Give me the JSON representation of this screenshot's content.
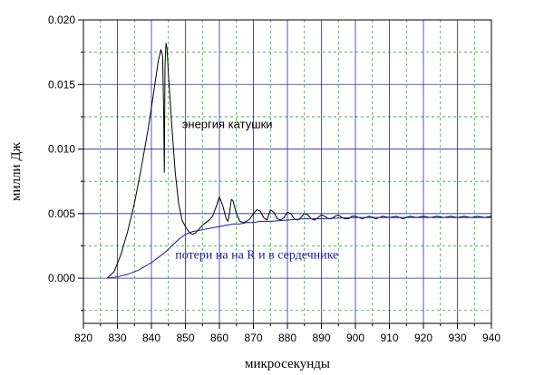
{
  "chart_data": {
    "type": "line",
    "xlabel": "микросекунды",
    "ylabel": "милли Дж",
    "xlim": [
      820,
      940
    ],
    "ylim": [
      -0.0035,
      0.02
    ],
    "xticks": [
      820,
      830,
      840,
      850,
      860,
      870,
      880,
      890,
      900,
      910,
      920,
      930,
      940
    ],
    "xtick_labels": [
      "820",
      "830",
      "840",
      "850",
      "860",
      "870",
      "880",
      "890",
      "900",
      "910",
      "920",
      "930",
      "940"
    ],
    "yticks": [
      0.0,
      0.005,
      0.01,
      0.015,
      0.02
    ],
    "ytick_labels": [
      "0.000",
      "0.005",
      "0.010",
      "0.015",
      "0.020"
    ],
    "grid": true,
    "colors": {
      "background": "#ffffff",
      "major_grid": "#2a2a9a",
      "minor_grid": "#22aa22",
      "loss_series": "#1a1aa8",
      "energy_series": "#000000"
    },
    "annotations": [
      {
        "text": "энергия катушки",
        "x": 849,
        "y": 0.0116,
        "color": "#000000"
      },
      {
        "text": "потери на на R и в сердечнике",
        "x": 847,
        "y": 0.0015,
        "color": "#1a1aa8"
      }
    ],
    "series": [
      {
        "name": "",
        "color": "#000000",
        "x": [
          827,
          829,
          831,
          833,
          835,
          837,
          839,
          840,
          841,
          842,
          842.8,
          843.3,
          843.6,
          843.8,
          844.0,
          844.3,
          844.6,
          845.0,
          846,
          847,
          848,
          849,
          850,
          851,
          852,
          853,
          854,
          855,
          856,
          857,
          858,
          859,
          860,
          861,
          862,
          862.5,
          863,
          863.5,
          864,
          865,
          866,
          867,
          868,
          869,
          870,
          871,
          872,
          873,
          874,
          875,
          876,
          877,
          878,
          879,
          880,
          881,
          882,
          883,
          884,
          885,
          886,
          887,
          888,
          889,
          890,
          891,
          892,
          893,
          894,
          895,
          896,
          897,
          898,
          899,
          900,
          902,
          904,
          906,
          908,
          910,
          912,
          914,
          916,
          918,
          920,
          922,
          924,
          926,
          928,
          930,
          932,
          934,
          936,
          938,
          940
        ],
        "y": [
          0.0,
          0.0005,
          0.0018,
          0.0036,
          0.0058,
          0.0085,
          0.0115,
          0.0132,
          0.015,
          0.0168,
          0.0177,
          0.0172,
          0.013,
          0.0082,
          0.0165,
          0.0182,
          0.0178,
          0.0158,
          0.0118,
          0.0082,
          0.0058,
          0.0045,
          0.004,
          0.0036,
          0.0034,
          0.0035,
          0.0038,
          0.0041,
          0.0043,
          0.0045,
          0.0048,
          0.0055,
          0.0063,
          0.0056,
          0.0046,
          0.0044,
          0.0051,
          0.0061,
          0.006,
          0.005,
          0.0044,
          0.0043,
          0.0044,
          0.0046,
          0.005,
          0.0053,
          0.0052,
          0.0047,
          0.0045,
          0.0053,
          0.0051,
          0.0046,
          0.0045,
          0.0047,
          0.0051,
          0.005,
          0.0046,
          0.0045,
          0.0047,
          0.005,
          0.0049,
          0.0046,
          0.0045,
          0.0047,
          0.0049,
          0.0048,
          0.0046,
          0.0046,
          0.0048,
          0.0049,
          0.0047,
          0.0046,
          0.0046,
          0.0048,
          0.0048,
          0.0046,
          0.0048,
          0.0046,
          0.0048,
          0.0047,
          0.0048,
          0.0046,
          0.0048,
          0.0047,
          0.0048,
          0.0047,
          0.0048,
          0.0047,
          0.0048,
          0.0047,
          0.0048,
          0.0047,
          0.0048,
          0.0047,
          0.0048
        ]
      },
      {
        "name": "",
        "color": "#1a1aa8",
        "x": [
          827,
          830,
          833,
          836,
          838,
          840,
          842,
          843,
          844,
          846,
          848,
          850,
          852,
          854,
          856,
          858,
          860,
          862,
          864,
          866,
          868,
          870,
          872,
          875,
          880,
          885,
          890,
          900,
          910,
          920,
          930,
          940
        ],
        "y": [
          0.0,
          0.0001,
          0.0003,
          0.0006,
          0.0009,
          0.0012,
          0.0016,
          0.0018,
          0.002,
          0.0025,
          0.003,
          0.0034,
          0.0036,
          0.0037,
          0.0038,
          0.0039,
          0.004,
          0.0041,
          0.0042,
          0.0042,
          0.0043,
          0.0043,
          0.0044,
          0.0044,
          0.0045,
          0.0046,
          0.0046,
          0.0047,
          0.0047,
          0.0047,
          0.0047,
          0.0047
        ]
      }
    ]
  }
}
